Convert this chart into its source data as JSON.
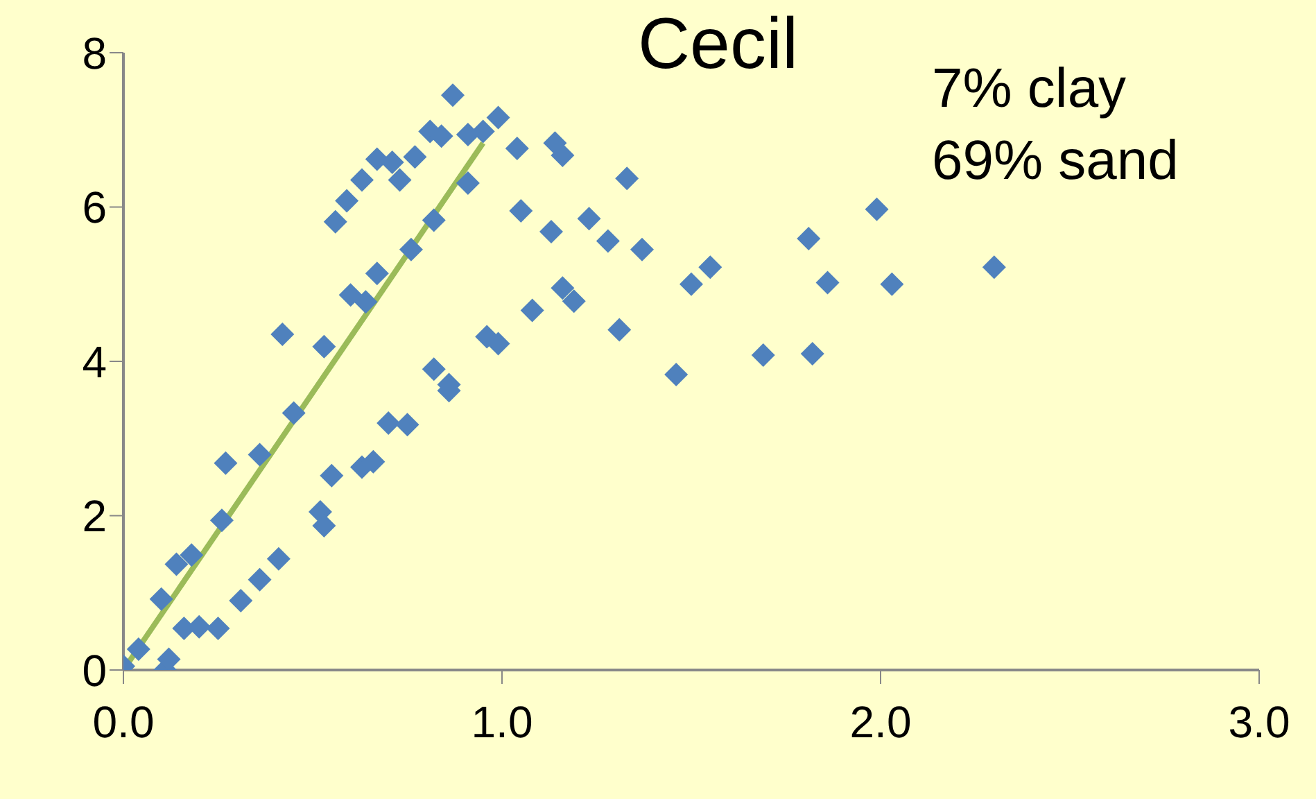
{
  "chart_data": {
    "type": "scatter",
    "title": "Cecil",
    "annotations": [
      "7% clay",
      "69% sand"
    ],
    "xlim": [
      0,
      3
    ],
    "ylim": [
      0,
      8
    ],
    "xticks": [
      {
        "value": 0,
        "label": "0.0"
      },
      {
        "value": 1,
        "label": "1.0"
      },
      {
        "value": 2,
        "label": "2.0"
      },
      {
        "value": 3,
        "label": "3.0"
      }
    ],
    "yticks": [
      0,
      2,
      4,
      6,
      8
    ],
    "grid": false,
    "legend": false,
    "marker": "diamond",
    "series": [
      {
        "color": "#4f81bd",
        "x": [
          0.0,
          0.04,
          0.11,
          0.12,
          0.1,
          0.14,
          0.18,
          0.16,
          0.2,
          0.25,
          0.26,
          0.31,
          0.27,
          0.36,
          0.36,
          0.41,
          0.42,
          0.45,
          0.52,
          0.53,
          0.55,
          0.53,
          0.56,
          0.59,
          0.63,
          0.63,
          0.66,
          0.6,
          0.64,
          0.67,
          0.67,
          0.71,
          0.73,
          0.77,
          0.76,
          0.7,
          0.75,
          0.81,
          0.84,
          0.87,
          0.82,
          0.82,
          0.86,
          0.86,
          0.91,
          0.91,
          0.95,
          0.96,
          0.99,
          0.99,
          1.04,
          1.05,
          1.08,
          1.13,
          1.14,
          1.16,
          1.16,
          1.19,
          1.23,
          1.28,
          1.31,
          1.33,
          1.37,
          1.46,
          1.5,
          1.55,
          1.69,
          1.81,
          1.82,
          1.86,
          1.99,
          2.03,
          2.3
        ],
        "values": [
          0.05,
          0.27,
          0.0,
          0.14,
          0.92,
          1.37,
          1.49,
          0.54,
          0.56,
          0.54,
          1.94,
          0.9,
          2.68,
          1.17,
          2.79,
          1.44,
          4.35,
          3.33,
          2.05,
          1.87,
          2.52,
          4.19,
          5.81,
          6.08,
          2.63,
          6.35,
          2.7,
          4.86,
          4.77,
          5.14,
          6.62,
          6.58,
          6.35,
          6.65,
          5.45,
          3.2,
          3.18,
          6.98,
          6.92,
          7.45,
          5.83,
          3.9,
          3.7,
          3.62,
          6.94,
          6.31,
          6.98,
          4.32,
          7.16,
          4.23,
          6.76,
          5.95,
          4.66,
          5.68,
          6.83,
          6.67,
          4.95,
          4.78,
          5.85,
          5.56,
          4.41,
          6.37,
          5.45,
          3.83,
          5.0,
          5.22,
          4.08,
          5.59,
          4.1,
          5.02,
          5.97,
          5.0,
          5.22
        ]
      },
      {
        "type": "line",
        "color": "#9bbb59",
        "marker": "none",
        "line_style": "solid",
        "x": [
          0,
          0.95
        ],
        "values": [
          0,
          6.83
        ]
      }
    ]
  }
}
